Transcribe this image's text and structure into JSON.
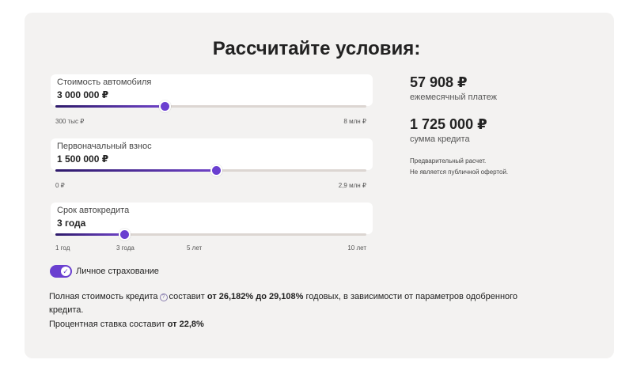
{
  "title": "Рассчитайте условия:",
  "sliders": [
    {
      "label": "Стоимость автомобиля",
      "value": "3 000 000 ₽",
      "fraction": 0.35,
      "ticks": [
        {
          "label": "300 тыс ₽",
          "fraction": 0.0
        },
        {
          "label": "8 млн ₽",
          "fraction": 1.0
        }
      ]
    },
    {
      "label": "Первоначальный взнос",
      "value": "1 500 000 ₽",
      "fraction": 0.517,
      "ticks": [
        {
          "label": "0 ₽",
          "fraction": 0.0
        },
        {
          "label": "2,9 млн ₽",
          "fraction": 1.0
        }
      ]
    },
    {
      "label": "Срок автокредита",
      "value": "3 года",
      "fraction": 0.222,
      "ticks": [
        {
          "label": "1 год",
          "fraction": 0.0
        },
        {
          "label": "3 года",
          "fraction": 0.222
        },
        {
          "label": "5 лет",
          "fraction": 0.444
        },
        {
          "label": "10 лет",
          "fraction": 1.0
        }
      ]
    }
  ],
  "summary": {
    "monthly_payment": "57 908 ₽",
    "monthly_payment_label": "ежемесячный платеж",
    "loan_amount": "1 725 000 ₽",
    "loan_amount_label": "сумма кредита",
    "disclaimer_line1": "Предварительный расчет.",
    "disclaimer_line2": "Не является публичной офертой."
  },
  "insurance": {
    "label": "Личное страхование",
    "enabled": true
  },
  "info": {
    "line1_prefix": "Полная стоимость кредита",
    "line1_mid": "составит",
    "line1_range": "от 26,182% до 29,108%",
    "line1_suffix": "годовых, в зависимости от параметров одобренного",
    "line2": "кредита.",
    "rate_prefix": "Процентная ставка составит",
    "rate_value": "от 22,8%"
  },
  "colors": {
    "accent": "#6a3fd0",
    "card_background": "#f3f2f1",
    "track": "#dcd6d2"
  }
}
